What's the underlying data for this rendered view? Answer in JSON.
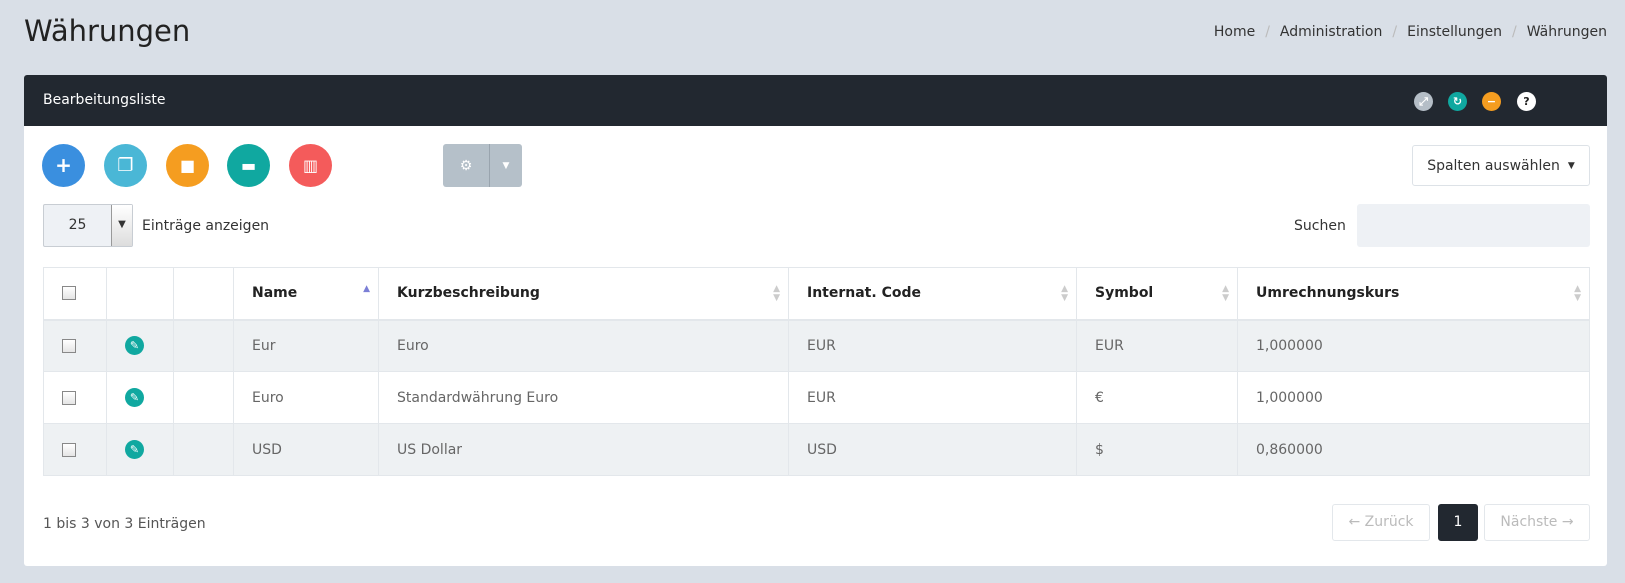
{
  "page": {
    "title": "Währungen"
  },
  "breadcrumb": [
    "Home",
    "Administration",
    "Einstellungen",
    "Währungen"
  ],
  "panel": {
    "title": "Bearbeitungsliste",
    "header_icons": [
      {
        "name": "expand-icon",
        "color": "#b5bec7"
      },
      {
        "name": "refresh-icon",
        "color": "#10a8a0"
      },
      {
        "name": "minimize-icon",
        "color": "#f59d20"
      },
      {
        "name": "help-icon",
        "color": "#ffffff"
      }
    ]
  },
  "toolbar": {
    "buttons": [
      {
        "name": "add",
        "color": "#3a8fdf",
        "glyph": "+"
      },
      {
        "name": "copy",
        "color": "#4ab7d6",
        "glyph": "⎘"
      },
      {
        "name": "lock",
        "color": "#f59d20",
        "glyph": "🔒"
      },
      {
        "name": "unlock",
        "color": "#10a8a0",
        "glyph": "🔓"
      },
      {
        "name": "delete",
        "color": "#f45b5b",
        "glyph": "🗑"
      }
    ],
    "columns_label": "Spalten auswählen"
  },
  "length": {
    "value": "25",
    "label": "Einträge anzeigen"
  },
  "search": {
    "label": "Suchen",
    "value": ""
  },
  "table": {
    "columns": [
      "Name",
      "Kurzbeschreibung",
      "Internat. Code",
      "Symbol",
      "Umrechnungskurs"
    ],
    "sorted_column": "Name",
    "sort_direction": "asc",
    "rows": [
      [
        "Eur",
        "Euro",
        "EUR",
        "EUR",
        "1,000000"
      ],
      [
        "Euro",
        "Standardwährung Euro",
        "EUR",
        "€",
        "1,000000"
      ],
      [
        "USD",
        "US Dollar",
        "USD",
        "$",
        "0,860000"
      ]
    ]
  },
  "footer": {
    "info": "1 bis 3 von 3 Einträgen",
    "prev": "← Zurück",
    "page": "1",
    "next": "Nächste →"
  }
}
